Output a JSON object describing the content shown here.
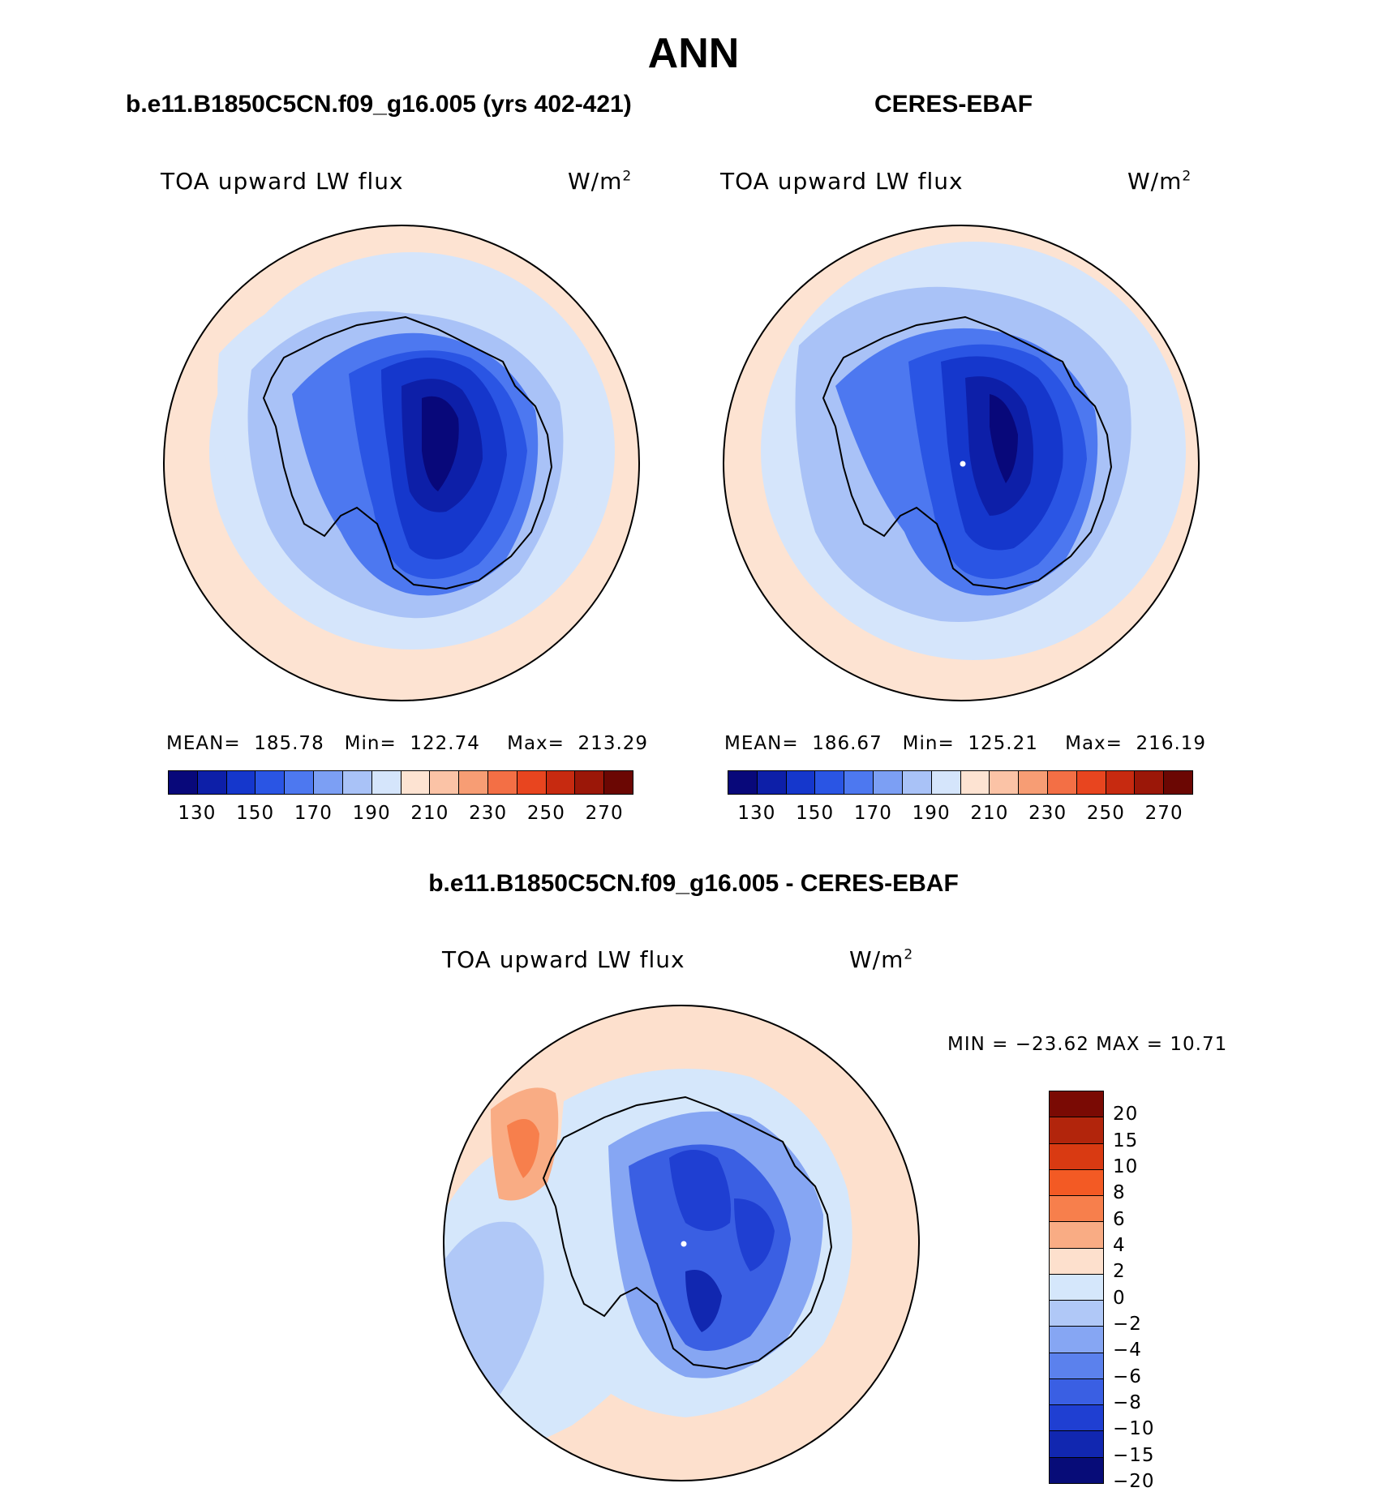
{
  "season": "ANN",
  "panels": [
    {
      "title": "b.e11.B1850C5CN.f09_g16.005 (yrs 402-421)",
      "variable": "TOA upward LW flux",
      "units_base": "W/m",
      "units_exp": "2",
      "stats": {
        "mean_label": "MEAN=",
        "mean": "185.78",
        "min_label": "Min=",
        "min": "122.74",
        "max_label": "Max=",
        "max": "213.29"
      }
    },
    {
      "title": "CERES-EBAF",
      "variable": "TOA upward LW flux",
      "units_base": "W/m",
      "units_exp": "2",
      "stats": {
        "mean_label": "MEAN=",
        "mean": "186.67",
        "min_label": "Min=",
        "min": "125.21",
        "max_label": "Max=",
        "max": "216.19"
      }
    }
  ],
  "diff": {
    "title": "b.e11.B1850C5CN.f09_g16.005 - CERES-EBAF",
    "variable": "TOA upward LW flux",
    "units_base": "W/m",
    "units_exp": "2",
    "minmax": "MIN = −23.62 MAX =   10.71"
  },
  "colorbar_abs": {
    "labels": [
      "130",
      "150",
      "170",
      "190",
      "210",
      "230",
      "250",
      "270"
    ],
    "colors": [
      "#08087a",
      "#0d1fa8",
      "#1537cc",
      "#2a55e4",
      "#4d78f0",
      "#7c9ff4",
      "#a9c2f7",
      "#d5e5fb",
      "#fde3d2",
      "#fbc3a6",
      "#f79d74",
      "#f36f45",
      "#e8451f",
      "#c72a10",
      "#9b1708",
      "#6b0703"
    ]
  },
  "colorbar_diff": {
    "labels": [
      "20",
      "15",
      "10",
      "8",
      "6",
      "4",
      "2",
      "0",
      "−2",
      "−4",
      "−6",
      "−8",
      "−10",
      "−15",
      "−20"
    ],
    "colors": [
      "#7a0a04",
      "#b2250c",
      "#d93a12",
      "#f35a24",
      "#f77f4c",
      "#f9ac84",
      "#fde0cd",
      "#d5e7fb",
      "#b0c8f7",
      "#86a6f3",
      "#5b81ed",
      "#3a5fe3",
      "#1f3fd2",
      "#1127b0",
      "#070c78"
    ]
  }
}
